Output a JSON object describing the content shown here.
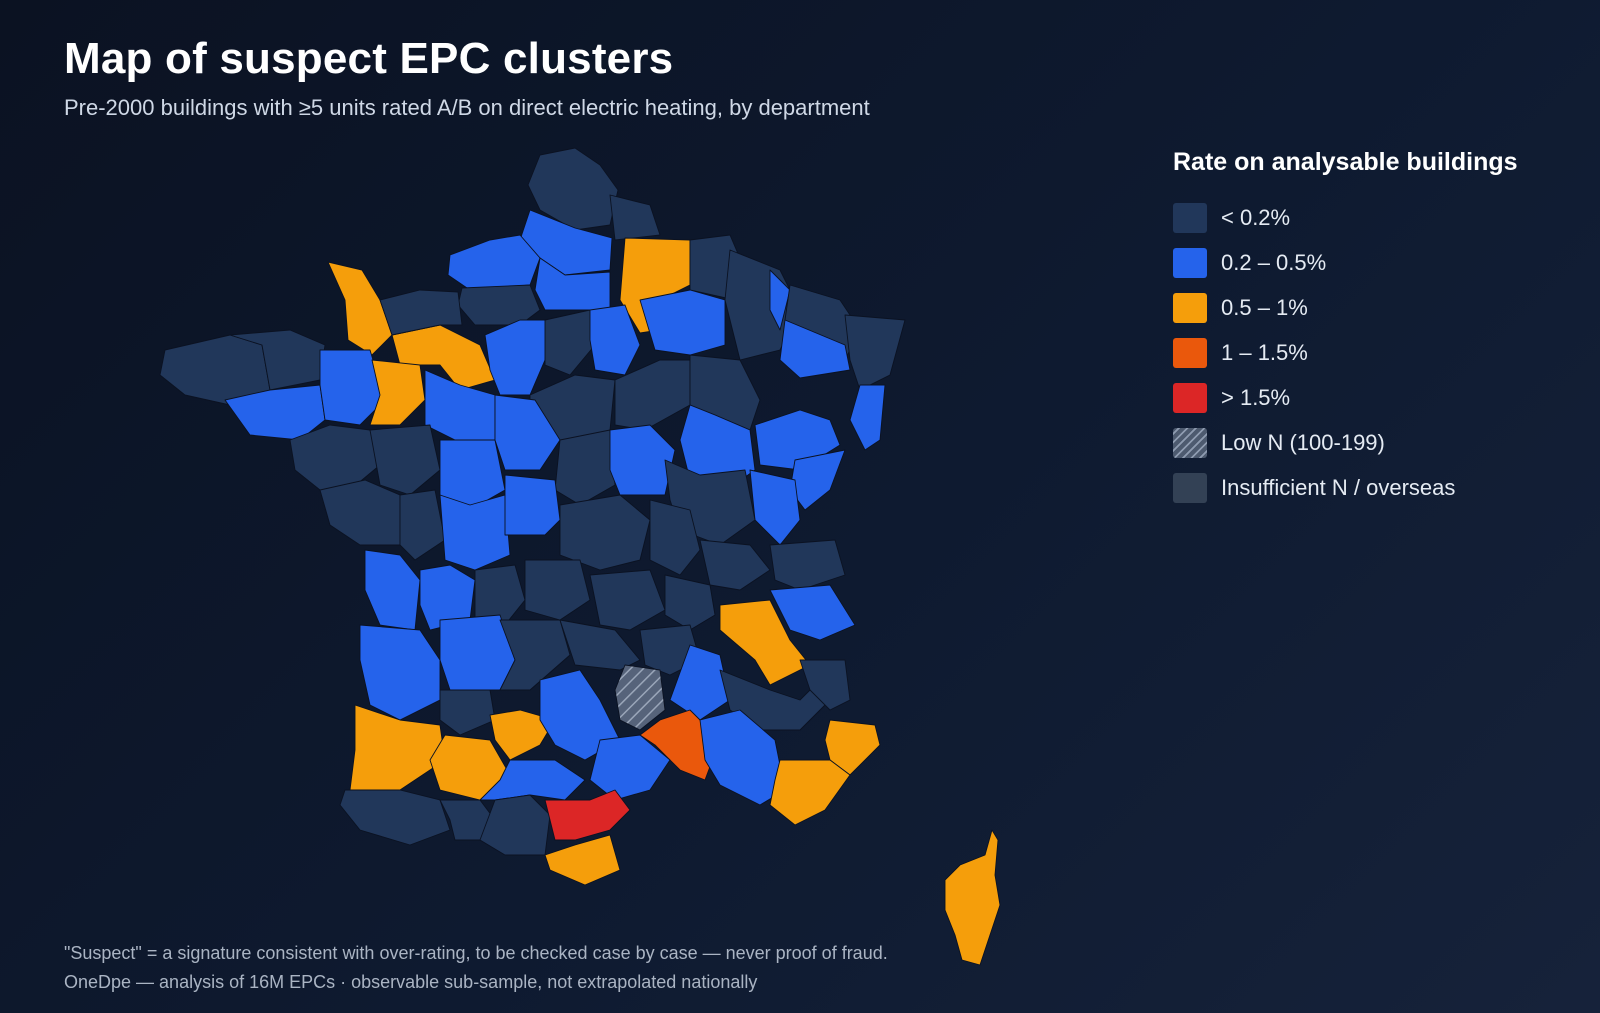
{
  "title": "Map of suspect EPC clusters",
  "subtitle": "Pre-2000 buildings with ≥5 units rated A/B on direct electric heating, by department",
  "legend": {
    "title": "Rate on analysable buildings",
    "items": [
      {
        "key": "c0",
        "label": "< 0.2%",
        "color": "#21375a"
      },
      {
        "key": "c1",
        "label": "0.2 – 0.5%",
        "color": "#2563eb"
      },
      {
        "key": "c2",
        "label": "0.5 – 1%",
        "color": "#f59e0b"
      },
      {
        "key": "c3",
        "label": "1 – 1.5%",
        "color": "#ea580c"
      },
      {
        "key": "c4",
        "label": "> 1.5%",
        "color": "#dc2626"
      },
      {
        "key": "low",
        "label": "Low N (100-199)",
        "color": "#56637a"
      },
      {
        "key": "na",
        "label": "Insufficient N / overseas",
        "color": "#334155"
      }
    ]
  },
  "footer": {
    "note": "\"Suspect\" = a signature consistent with over-rating, to be checked case by case — never proof of fraud.",
    "source": "OneDpe — analysis of 16M EPCs · observable sub-sample, not extrapolated nationally"
  }
}
